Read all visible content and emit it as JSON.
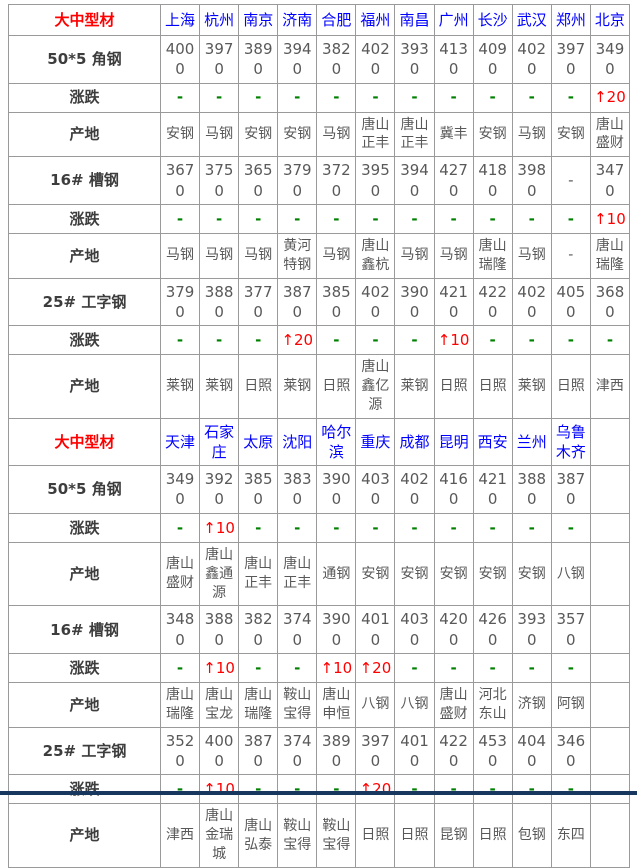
{
  "page": {
    "bottom_bar_color": "#17375E"
  },
  "colors": {
    "section_label": "#FF0000",
    "city_text": "#0000FF",
    "number_text": "#595959",
    "row_label_text": "#3D3D3D",
    "up_change": "#FF0000",
    "dash_change": "#008000",
    "grid_border": "#9A9A9A"
  },
  "table": {
    "sections": [
      {
        "label": "大中型材",
        "cities": [
          "上海",
          "杭州",
          "南京",
          "济南",
          "合肥",
          "福州",
          "南昌",
          "广州",
          "长沙",
          "武汉",
          "郑州",
          "北京"
        ],
        "rows": [
          {
            "label": "50*5 角钢",
            "kind": "price",
            "values": [
              "4000",
              "3970",
              "3890",
              "3940",
              "3820",
              "4020",
              "3930",
              "4130",
              "4090",
              "4020",
              "3970",
              "3490"
            ]
          },
          {
            "label": "涨跌",
            "kind": "change",
            "values": [
              "-",
              "-",
              "-",
              "-",
              "-",
              "-",
              "-",
              "-",
              "-",
              "-",
              "-",
              "↑20"
            ]
          },
          {
            "label": "产地",
            "kind": "origin",
            "values": [
              "安钢",
              "马钢",
              "安钢",
              "安钢",
              "马钢",
              "唐山正丰",
              "唐山正丰",
              "冀丰",
              "安钢",
              "马钢",
              "安钢",
              "唐山盛财"
            ]
          },
          {
            "label": "16# 槽钢",
            "kind": "price",
            "values": [
              "3670",
              "3750",
              "3650",
              "3790",
              "3720",
              "3950",
              "3940",
              "4270",
              "4180",
              "3980",
              "-",
              "3470"
            ]
          },
          {
            "label": "涨跌",
            "kind": "change",
            "values": [
              "-",
              "-",
              "-",
              "-",
              "-",
              "-",
              "-",
              "-",
              "-",
              "-",
              "-",
              "↑10"
            ]
          },
          {
            "label": "产地",
            "kind": "origin",
            "values": [
              "马钢",
              "马钢",
              "马钢",
              "黄河特钢",
              "马钢",
              "唐山鑫杭",
              "马钢",
              "马钢",
              "唐山瑞隆",
              "马钢",
              "-",
              "唐山瑞隆"
            ]
          },
          {
            "label": "25# 工字钢",
            "kind": "price",
            "values": [
              "3790",
              "3880",
              "3770",
              "3870",
              "3850",
              "4020",
              "3900",
              "4210",
              "4220",
              "4020",
              "4050",
              "3680"
            ]
          },
          {
            "label": "涨跌",
            "kind": "change",
            "values": [
              "-",
              "-",
              "-",
              "↑20",
              "-",
              "-",
              "-",
              "↑10",
              "-",
              "-",
              "-",
              "-"
            ]
          },
          {
            "label": "产地",
            "kind": "origin",
            "values": [
              "莱钢",
              "莱钢",
              "日照",
              "莱钢",
              "日照",
              "唐山鑫亿源",
              "莱钢",
              "日照",
              "日照",
              "莱钢",
              "日照",
              "津西"
            ]
          }
        ]
      },
      {
        "label": "大中型材",
        "cities": [
          "天津",
          "石家庄",
          "太原",
          "沈阳",
          "哈尔滨",
          "重庆",
          "成都",
          "昆明",
          "西安",
          "兰州",
          "乌鲁木齐",
          ""
        ],
        "rows": [
          {
            "label": "50*5 角钢",
            "kind": "price",
            "values": [
              "3490",
              "3920",
              "3850",
              "3830",
              "3900",
              "4030",
              "4020",
              "4160",
              "4210",
              "3880",
              "3870",
              ""
            ]
          },
          {
            "label": "涨跌",
            "kind": "change",
            "values": [
              "-",
              "↑10",
              "-",
              "-",
              "-",
              "-",
              "-",
              "-",
              "-",
              "-",
              "-",
              ""
            ]
          },
          {
            "label": "产地",
            "kind": "origin",
            "values": [
              "唐山盛财",
              "唐山鑫通源",
              "唐山正丰",
              "唐山正丰",
              "通钢",
              "安钢",
              "安钢",
              "安钢",
              "安钢",
              "安钢",
              "八钢",
              ""
            ]
          },
          {
            "label": "16# 槽钢",
            "kind": "price",
            "values": [
              "3480",
              "3880",
              "3820",
              "3740",
              "3900",
              "4010",
              "4030",
              "4200",
              "4260",
              "3930",
              "3570",
              ""
            ]
          },
          {
            "label": "涨跌",
            "kind": "change",
            "values": [
              "-",
              "↑10",
              "-",
              "-",
              "↑10",
              "↑20",
              "-",
              "-",
              "-",
              "-",
              "-",
              ""
            ]
          },
          {
            "label": "产地",
            "kind": "origin",
            "values": [
              "唐山瑞隆",
              "唐山宝龙",
              "唐山瑞隆",
              "鞍山宝得",
              "唐山申恒",
              "八钢",
              "八钢",
              "唐山盛财",
              "河北东山",
              "济钢",
              "阿钢",
              ""
            ]
          },
          {
            "label": "25# 工字钢",
            "kind": "price",
            "values": [
              "3520",
              "4000",
              "3870",
              "3740",
              "3890",
              "3970",
              "4010",
              "4220",
              "4530",
              "4040",
              "3460",
              ""
            ]
          },
          {
            "label": "涨跌",
            "kind": "change",
            "values": [
              "-",
              "↑10",
              "-",
              "-",
              "-",
              "↑20",
              "-",
              "-",
              "-",
              "-",
              "-",
              ""
            ]
          },
          {
            "label": "产地",
            "kind": "origin",
            "values": [
              "津西",
              "唐山金瑞城",
              "唐山弘泰",
              "鞍山宝得",
              "鞍山宝得",
              "日照",
              "日照",
              "昆钢",
              "日照",
              "包钢",
              "东四",
              ""
            ]
          }
        ]
      }
    ]
  }
}
